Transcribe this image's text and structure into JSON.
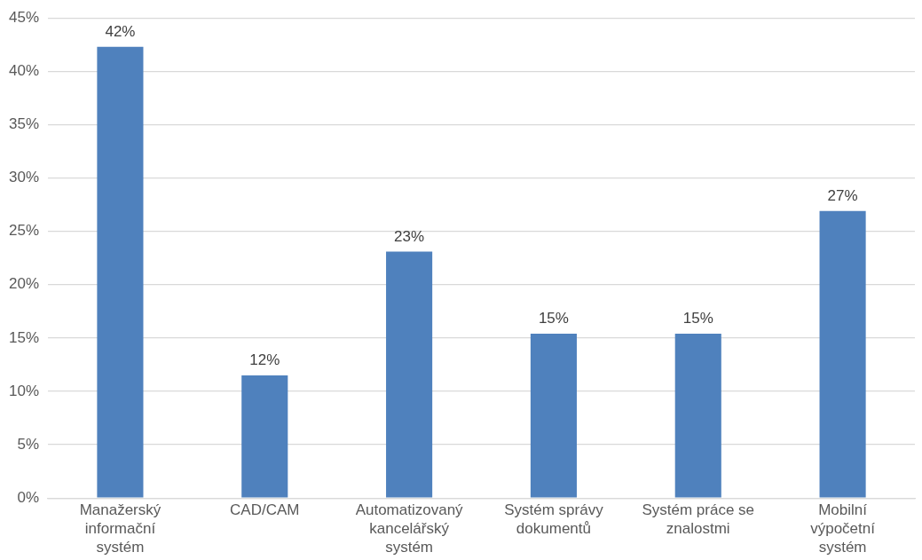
{
  "chart_data": {
    "type": "bar",
    "categories": [
      "Manažerský informační systém",
      "CAD/CAM",
      "Automatizovaný kancelářský systém",
      "Systém správy dokumentů",
      "Systém práce se znalostmi",
      "Mobilní výpočetní systém"
    ],
    "values": [
      42.3,
      11.5,
      23.1,
      15.4,
      15.4,
      26.9
    ],
    "value_labels": [
      "42%",
      "12%",
      "23%",
      "15%",
      "15%",
      "27%"
    ],
    "color": "#4f81bd",
    "ylim": [
      0,
      45
    ],
    "yticks": [
      {
        "value": 0,
        "label": "0%"
      },
      {
        "value": 5,
        "label": "5%"
      },
      {
        "value": 10,
        "label": "10%"
      },
      {
        "value": 15,
        "label": "15%"
      },
      {
        "value": 20,
        "label": "20%"
      },
      {
        "value": 25,
        "label": "25%"
      },
      {
        "value": 30,
        "label": "30%"
      },
      {
        "value": 35,
        "label": "35%"
      },
      {
        "value": 40,
        "label": "40%"
      },
      {
        "value": 45,
        "label": "45%"
      }
    ],
    "grid": "y",
    "legend": false
  }
}
